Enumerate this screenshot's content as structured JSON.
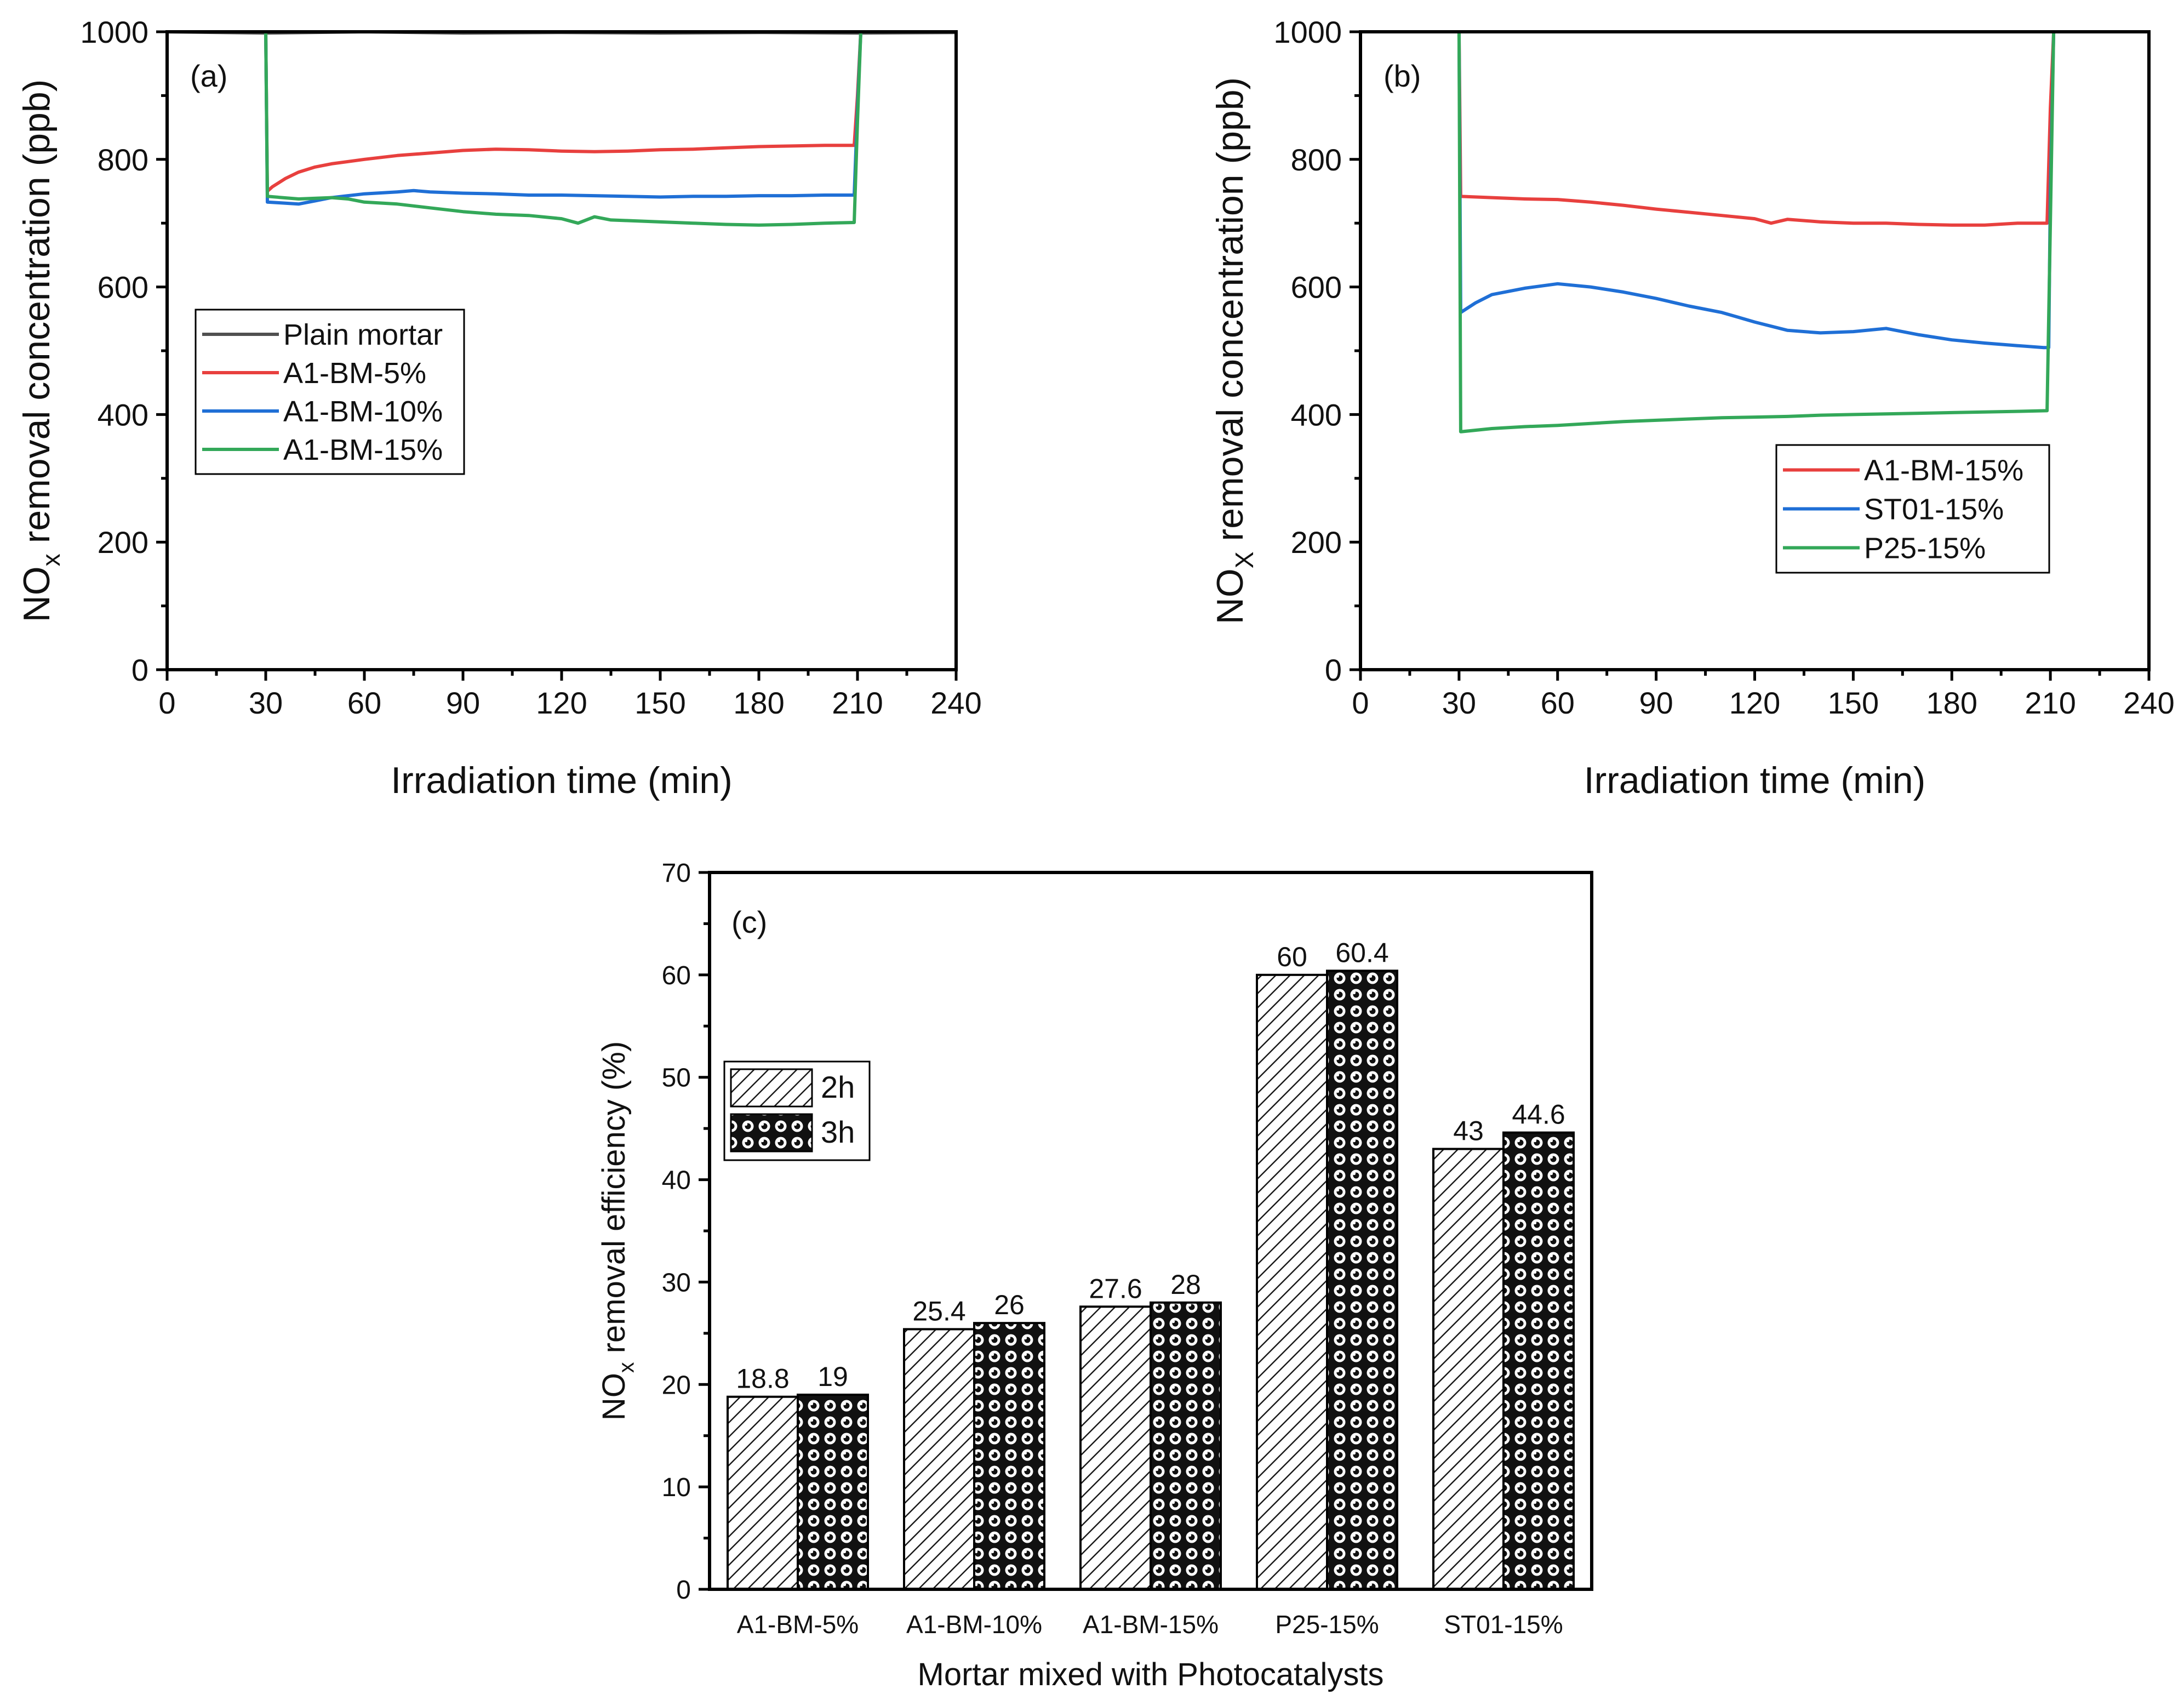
{
  "chart_data": [
    {
      "id": "a",
      "type": "line",
      "panel_label": "(a)",
      "xlabel": "Irradiation time (min)",
      "ylabel_prefix": "NO",
      "ylabel_sub": "x",
      "ylabel_suffix": " removal concentration (ppb)",
      "xlim": [
        0,
        240
      ],
      "ylim": [
        0,
        1000
      ],
      "xticks": [
        0,
        30,
        60,
        90,
        120,
        150,
        180,
        210,
        240
      ],
      "yticks": [
        0,
        200,
        400,
        600,
        800,
        1000
      ],
      "grid": false,
      "legend_position": "middle-left",
      "series": [
        {
          "name": "Plain mortar",
          "color": "#505050",
          "x": [
            0,
            30,
            60,
            90,
            120,
            150,
            180,
            210,
            240
          ],
          "values": [
            1000,
            998,
            1000,
            998,
            999,
            998,
            999,
            998,
            999
          ]
        },
        {
          "name": "A1-BM-5%",
          "color": "#e8403e",
          "x": [
            0,
            30,
            30.5,
            32,
            36,
            40,
            45,
            50,
            60,
            70,
            80,
            90,
            100,
            110,
            120,
            130,
            140,
            150,
            160,
            170,
            180,
            190,
            200,
            209,
            210,
            211,
            212,
            240
          ],
          "values": [
            1000,
            1000,
            750,
            757,
            770,
            780,
            788,
            793,
            800,
            806,
            810,
            814,
            816,
            815,
            813,
            812,
            813,
            815,
            816,
            818,
            820,
            821,
            822,
            822,
            900,
            1000,
            1000,
            1000
          ]
        },
        {
          "name": "A1-BM-10%",
          "color": "#1f6fd6",
          "x": [
            0,
            30,
            30.5,
            34,
            40,
            45,
            50,
            55,
            60,
            70,
            75,
            80,
            90,
            100,
            110,
            120,
            130,
            140,
            150,
            160,
            170,
            180,
            190,
            200,
            209,
            210,
            211,
            212,
            240
          ],
          "values": [
            1000,
            1000,
            733,
            732,
            730,
            735,
            740,
            743,
            746,
            749,
            751,
            749,
            747,
            746,
            744,
            744,
            743,
            742,
            741,
            742,
            742,
            743,
            743,
            744,
            744,
            880,
            1000,
            1000,
            1000
          ]
        },
        {
          "name": "A1-BM-15%",
          "color": "#33a859",
          "x": [
            0,
            30,
            30.5,
            40,
            50,
            55,
            60,
            70,
            80,
            90,
            100,
            110,
            120,
            125,
            130,
            135,
            140,
            150,
            160,
            170,
            180,
            190,
            200,
            209,
            210,
            211,
            240
          ],
          "values": [
            1000,
            1000,
            742,
            738,
            740,
            738,
            733,
            730,
            724,
            718,
            714,
            712,
            707,
            700,
            710,
            705,
            704,
            702,
            700,
            698,
            697,
            698,
            700,
            701,
            860,
            1000,
            1000
          ]
        }
      ]
    },
    {
      "id": "b",
      "type": "line",
      "panel_label": "(b)",
      "xlabel": "Irradiation time (min)",
      "ylabel_prefix": "NO",
      "ylabel_sub": "X",
      "ylabel_suffix": " removal concentration (ppb)",
      "xlim": [
        0,
        240
      ],
      "ylim": [
        0,
        1000
      ],
      "xticks": [
        0,
        30,
        60,
        90,
        120,
        150,
        180,
        210,
        240
      ],
      "yticks": [
        0,
        200,
        400,
        600,
        800,
        1000
      ],
      "grid": false,
      "legend_position": "lower-right",
      "series": [
        {
          "name": "A1-BM-15%",
          "color": "#e8403e",
          "x": [
            0,
            30,
            30.5,
            40,
            50,
            60,
            70,
            80,
            90,
            100,
            110,
            120,
            125,
            130,
            140,
            150,
            160,
            170,
            180,
            190,
            200,
            209,
            210,
            211,
            240
          ],
          "values": [
            1000,
            1000,
            742,
            740,
            738,
            737,
            733,
            728,
            722,
            717,
            712,
            707,
            700,
            706,
            702,
            700,
            700,
            698,
            697,
            697,
            700,
            700,
            880,
            1000,
            1000
          ]
        },
        {
          "name": "ST01-15%",
          "color": "#1f6fd6",
          "x": [
            0,
            30,
            30.5,
            35,
            40,
            50,
            60,
            70,
            80,
            90,
            100,
            110,
            120,
            130,
            140,
            150,
            160,
            170,
            180,
            190,
            200,
            208,
            209.5,
            210,
            211,
            240
          ],
          "values": [
            1000,
            1000,
            560,
            575,
            588,
            598,
            605,
            600,
            592,
            582,
            570,
            560,
            545,
            532,
            528,
            530,
            535,
            525,
            517,
            512,
            508,
            505,
            505,
            750,
            1000,
            1000
          ]
        },
        {
          "name": "P25-15%",
          "color": "#33a859",
          "x": [
            0,
            30,
            30.5,
            40,
            50,
            60,
            70,
            80,
            90,
            100,
            110,
            120,
            130,
            140,
            150,
            160,
            170,
            180,
            190,
            200,
            209,
            210,
            211,
            240
          ],
          "values": [
            1000,
            1000,
            373,
            378,
            381,
            383,
            386,
            389,
            391,
            393,
            395,
            396,
            397,
            399,
            400,
            401,
            402,
            403,
            404,
            405,
            406,
            700,
            1000,
            1000
          ]
        }
      ]
    },
    {
      "id": "c",
      "type": "bar",
      "panel_label": "(c)",
      "xlabel": "Mortar mixed with Photocatalysts",
      "ylabel_prefix": "NO",
      "ylabel_sub": "x",
      "ylabel_suffix": " removal efficiency (%)",
      "categories": [
        "A1-BM-5%",
        "A1-BM-10%",
        "A1-BM-15%",
        "P25-15%",
        "ST01-15%"
      ],
      "ylim": [
        0,
        70
      ],
      "yticks": [
        0,
        10,
        20,
        30,
        40,
        50,
        60,
        70
      ],
      "grid": false,
      "legend_position": "upper-left",
      "series": [
        {
          "name": "2h",
          "pattern": "hatch",
          "values": [
            18.8,
            25.4,
            27.6,
            60,
            43
          ],
          "labels": [
            "18.8",
            "25.4",
            "27.6",
            "60",
            "43"
          ]
        },
        {
          "name": "3h",
          "pattern": "dots",
          "values": [
            19,
            26,
            28,
            60.4,
            44.6
          ],
          "labels": [
            "19",
            "26",
            "28",
            "60.4",
            "44.6"
          ]
        }
      ]
    }
  ]
}
